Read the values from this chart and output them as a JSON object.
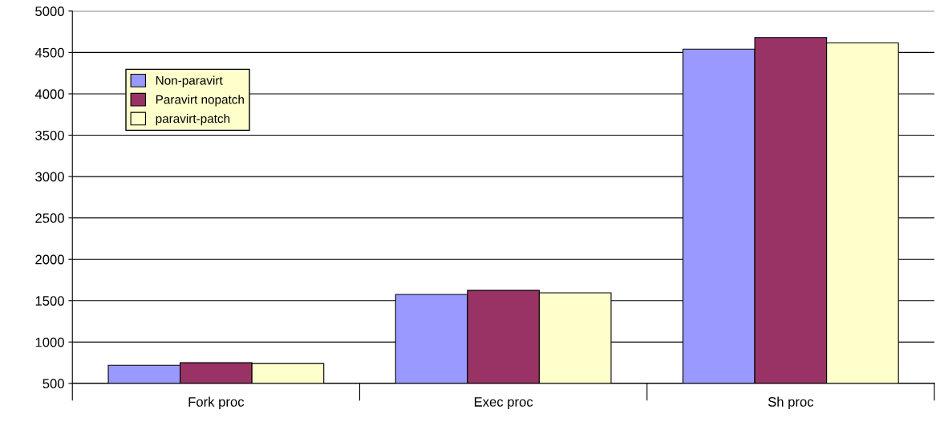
{
  "chart_data": {
    "type": "bar",
    "categories": [
      "Fork proc",
      "Exec proc",
      "Sh proc"
    ],
    "series": [
      {
        "name": "Non-paravirt",
        "color": "#9999ff",
        "values": [
          720,
          1575,
          4540
        ]
      },
      {
        "name": "Paravirt nopatch",
        "color": "#993366",
        "values": [
          750,
          1625,
          4680
        ]
      },
      {
        "name": "paravirt-patch",
        "color": "#ffffcc",
        "values": [
          740,
          1595,
          4615
        ]
      }
    ],
    "ylim": [
      500,
      5000
    ],
    "yticks": [
      500,
      1000,
      1500,
      2000,
      2500,
      3000,
      3500,
      4000,
      4500,
      5000
    ],
    "grid": "y",
    "legend": "top left"
  }
}
